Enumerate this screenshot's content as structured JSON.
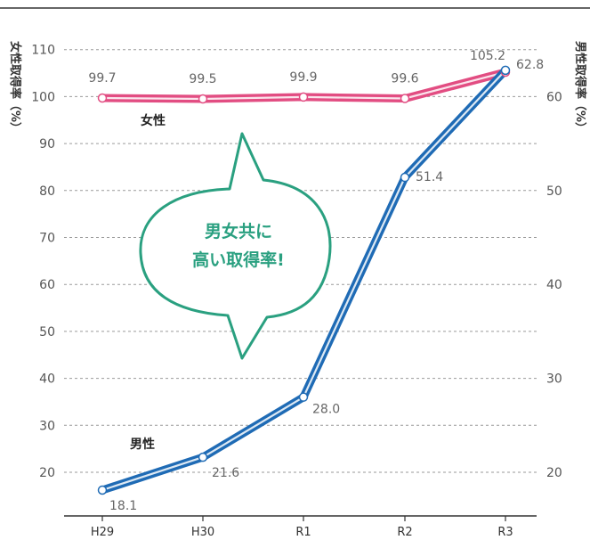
{
  "chart_data": {
    "type": "line",
    "categories": [
      "H29",
      "H30",
      "R1",
      "R2",
      "R3"
    ],
    "y_left": {
      "label": "女性取得率（%）",
      "ticks": [
        "20",
        "30",
        "40",
        "50",
        "60",
        "70",
        "80",
        "90",
        "100",
        "110"
      ]
    },
    "y_right": {
      "label": "男性取得率（%）",
      "ticks": [
        "20",
        "30",
        "40",
        "50",
        "60"
      ]
    },
    "series": [
      {
        "name": "女性",
        "axis": "left",
        "color": "#e24d82",
        "values": [
          99.7,
          99.5,
          99.9,
          99.6,
          105.2
        ],
        "labels": [
          "99.7",
          "99.5",
          "99.9",
          "99.6",
          "105.2"
        ]
      },
      {
        "name": "男性",
        "axis": "right",
        "color": "#1f6bb5",
        "values": [
          18.1,
          21.6,
          28.0,
          51.4,
          62.8
        ],
        "labels": [
          "18.1",
          "21.6",
          "28.0",
          "51.4",
          "62.8"
        ]
      }
    ],
    "annotation": {
      "lines": [
        "男女共に",
        "高い取得率!"
      ],
      "color": "#2aa080"
    },
    "grid": true
  }
}
